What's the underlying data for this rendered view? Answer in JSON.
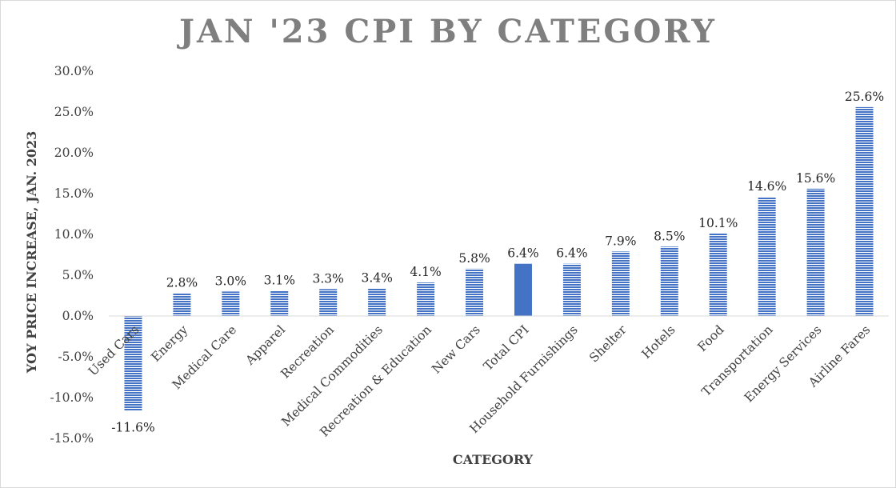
{
  "chart_data": {
    "type": "bar",
    "title": "JAN '23 CPI BY CATEGORY",
    "xlabel": "CATEGORY",
    "ylabel": "YOY PRICE INCREASE, JAN. 2023",
    "ylim": [
      -15,
      30
    ],
    "ytick_step": 5,
    "ytick_labels": [
      "-15.0%",
      "-10.0%",
      "-5.0%",
      "0.0%",
      "5.0%",
      "10.0%",
      "15.0%",
      "20.0%",
      "25.0%",
      "30.0%"
    ],
    "grid": false,
    "legend": "none",
    "categories": [
      "Used Cars",
      "Energy",
      "Medical Care",
      "Apparel",
      "Recreation",
      "Medical Commodities",
      "Recreation & Education",
      "New Cars",
      "Total CPI",
      "Household Furnishings",
      "Shelter",
      "Hotels",
      "Food",
      "Transportation",
      "Energy Services",
      "Airline Fares"
    ],
    "values": [
      -11.6,
      2.8,
      3.0,
      3.1,
      3.3,
      3.4,
      4.1,
      5.8,
      6.4,
      6.4,
      7.9,
      8.5,
      10.1,
      14.6,
      15.6,
      25.6
    ],
    "data_labels": [
      "-11.6%",
      "2.8%",
      "3.0%",
      "3.1%",
      "3.3%",
      "3.4%",
      "4.1%",
      "5.8%",
      "6.4%",
      "6.4%",
      "7.9%",
      "8.5%",
      "10.1%",
      "14.6%",
      "15.6%",
      "25.6%"
    ],
    "highlight_category": "Total CPI",
    "colors": {
      "bar": "#4472c4",
      "bar_stripe": "#ffffff",
      "highlight": "#4472c4",
      "title": "#7f7f7f",
      "text": "#404040",
      "axis_line": "#d9d9d9"
    }
  }
}
